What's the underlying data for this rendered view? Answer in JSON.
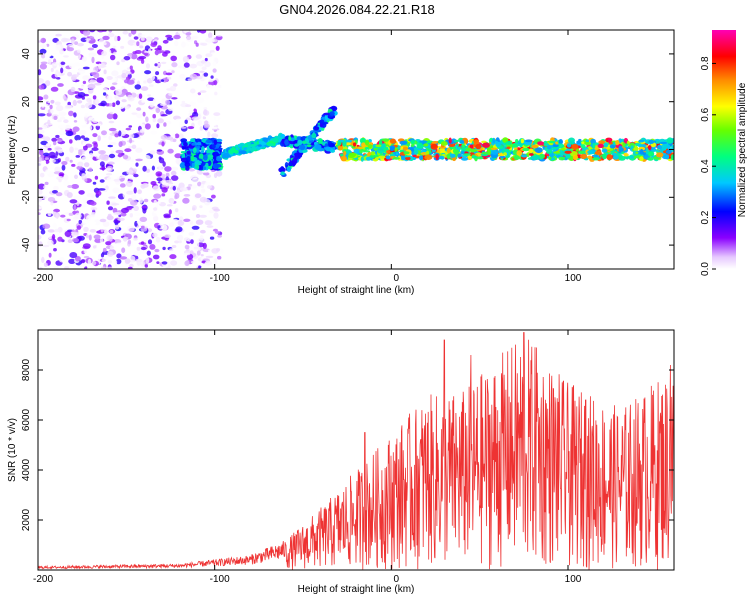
{
  "title": "GN04.2026.084.22.21.R18",
  "chart_data": [
    {
      "type": "heatmap",
      "title": "GN04.2026.084.22.21.R18",
      "xlabel": "Height of straight line (km)",
      "ylabel": "Frequency (Hz)",
      "xlim": [
        -200,
        160
      ],
      "ylim": [
        -50,
        50
      ],
      "xticks": [
        -200,
        -100,
        0,
        100
      ],
      "yticks": [
        -40,
        -20,
        0,
        20,
        40
      ],
      "colorbar": {
        "label": "Normalized spectral amplitude",
        "range": [
          0.0,
          0.93
        ],
        "ticks": [
          0.0,
          0.2,
          0.4,
          0.6,
          0.8
        ],
        "colormap": "rainbow (white-violet-blue-cyan-green-yellow-red-magenta)"
      },
      "regions": [
        {
          "name": "noise",
          "x_range": [
            -200,
            -97
          ],
          "y_range": [
            -50,
            50
          ],
          "amplitude": [
            0.0,
            0.2
          ]
        },
        {
          "name": "onset",
          "x_range": [
            -118,
            -97
          ],
          "y_range": [
            -8,
            4
          ],
          "amplitude": [
            0.2,
            0.45
          ]
        },
        {
          "name": "rising-branch",
          "x_range": [
            -95,
            -62
          ],
          "y_range": [
            -3,
            7
          ],
          "amplitude": [
            0.3,
            0.45
          ]
        },
        {
          "name": "crossing-lobes",
          "x_range": [
            -62,
            -32
          ],
          "y_range": [
            -12,
            18
          ],
          "amplitude": [
            0.2,
            0.45
          ]
        },
        {
          "name": "main-trace",
          "x_range": [
            -30,
            160
          ],
          "y_range": [
            -4,
            4
          ],
          "amplitude": [
            0.3,
            0.9
          ]
        }
      ]
    },
    {
      "type": "line",
      "xlabel": "Height of straight line (km)",
      "ylabel": "SNR (10 * v/v)",
      "xlim": [
        -200,
        160
      ],
      "ylim": [
        0,
        9600
      ],
      "xticks": [
        -200,
        -100,
        0,
        100
      ],
      "yticks": [
        2000,
        4000,
        6000,
        8000
      ],
      "color": "#ee3333",
      "envelope": [
        {
          "x": -200,
          "y": 150
        },
        {
          "x": -120,
          "y": 250
        },
        {
          "x": -80,
          "y": 600
        },
        {
          "x": -60,
          "y": 1200
        },
        {
          "x": -40,
          "y": 2500
        },
        {
          "x": -20,
          "y": 4000
        },
        {
          "x": 0,
          "y": 5500
        },
        {
          "x": 20,
          "y": 7000
        },
        {
          "x": 40,
          "y": 7200
        },
        {
          "x": 75,
          "y": 9500
        },
        {
          "x": 100,
          "y": 7500
        },
        {
          "x": 130,
          "y": 6500
        },
        {
          "x": 160,
          "y": 8200
        }
      ],
      "peaks": [
        {
          "x": -35,
          "y": 2700
        },
        {
          "x": -15,
          "y": 5500
        },
        {
          "x": 30,
          "y": 9200
        },
        {
          "x": 45,
          "y": 8600
        },
        {
          "x": 75,
          "y": 9500
        },
        {
          "x": 82,
          "y": 8900
        },
        {
          "x": 110,
          "y": 6800
        },
        {
          "x": 158,
          "y": 8200
        }
      ]
    }
  ]
}
